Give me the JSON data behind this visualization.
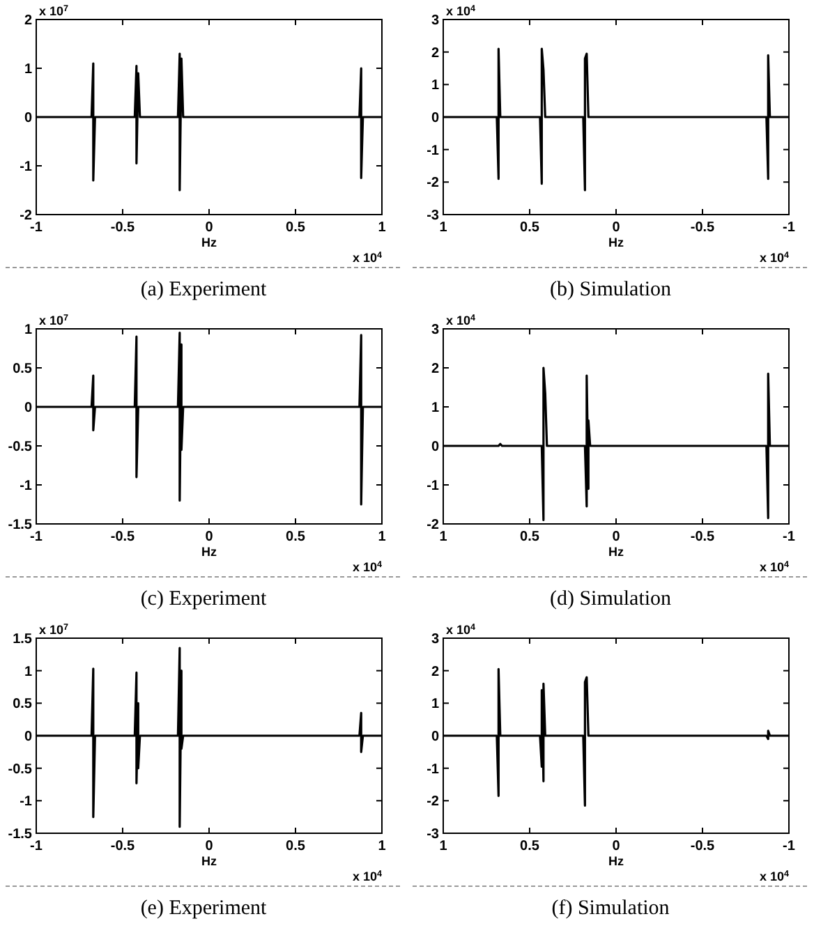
{
  "chart_data": [
    {
      "type": "line",
      "title": "(a) Experiment",
      "xlabel": "Hz",
      "annotations": [
        "x 10$^{7}$",
        "x 10$^{4}$"
      ],
      "xlim": [
        -1,
        1
      ],
      "xticks": [
        -1,
        -0.5,
        0,
        0.5,
        1
      ],
      "ylim": [
        -2,
        2
      ],
      "yticks": [
        -2,
        -1,
        0,
        1,
        2
      ],
      "x": [
        -1,
        -0.68,
        -0.67,
        -0.67,
        -0.66,
        -0.43,
        -0.42,
        -0.42,
        -0.41,
        -0.4,
        -0.18,
        -0.17,
        -0.17,
        -0.16,
        -0.15,
        0.87,
        0.88,
        0.88,
        0.89,
        1
      ],
      "series": [
        {
          "color": "#000000",
          "values": [
            0,
            0,
            1.1,
            -1.3,
            0,
            0,
            1.05,
            -0.95,
            0.9,
            0,
            0,
            1.3,
            -1.5,
            1.2,
            0,
            0,
            1.0,
            -1.25,
            0,
            0
          ]
        }
      ]
    },
    {
      "type": "line",
      "title": "(b) Simulation",
      "xlabel": "Hz",
      "annotations": [
        "x 10$^{4}$",
        "x 10$^{4}$"
      ],
      "xlim": [
        1,
        -1
      ],
      "xticks": [
        1,
        0.5,
        0,
        -0.5,
        -1
      ],
      "ylim": [
        -3,
        3
      ],
      "yticks": [
        -3,
        -2,
        -1,
        0,
        1,
        2,
        3
      ],
      "x": [
        -1,
        -0.89,
        -0.88,
        -0.88,
        -0.87,
        0.16,
        0.17,
        0.18,
        0.18,
        0.19,
        0.41,
        0.42,
        0.43,
        0.43,
        0.44,
        0.67,
        0.68,
        0.68,
        0.69,
        1
      ],
      "series": [
        {
          "color": "#000000",
          "values": [
            0,
            0,
            1.9,
            -1.9,
            0,
            0,
            1.95,
            1.8,
            -2.25,
            0,
            0,
            1.45,
            2.1,
            -2.05,
            0,
            0,
            2.1,
            -1.9,
            0,
            0
          ]
        }
      ]
    },
    {
      "type": "line",
      "title": "(c) Experiment",
      "xlabel": "Hz",
      "annotations": [
        "x 10$^{7}$",
        "x 10$^{4}$"
      ],
      "xlim": [
        -1,
        1
      ],
      "xticks": [
        -1,
        -0.5,
        0,
        0.5,
        1
      ],
      "ylim": [
        -1.5,
        1
      ],
      "yticks": [
        -1.5,
        -1,
        -0.5,
        0,
        0.5,
        1
      ],
      "x": [
        -1,
        -0.68,
        -0.67,
        -0.67,
        -0.66,
        -0.43,
        -0.42,
        -0.42,
        -0.41,
        -0.18,
        -0.17,
        -0.17,
        -0.16,
        -0.16,
        -0.15,
        0.87,
        0.88,
        0.88,
        0.89,
        1
      ],
      "series": [
        {
          "color": "#000000",
          "values": [
            0,
            0,
            0.4,
            -0.3,
            0,
            0,
            0.9,
            -0.9,
            0,
            0,
            0.95,
            -1.2,
            0.8,
            -0.55,
            0,
            0,
            0.92,
            -1.25,
            0,
            0
          ]
        }
      ]
    },
    {
      "type": "line",
      "title": "(d) Simulation",
      "xlabel": "Hz",
      "annotations": [
        "x 10$^{4}$",
        "x 10$^{4}$"
      ],
      "xlim": [
        1,
        -1
      ],
      "xticks": [
        1,
        0.5,
        0,
        -0.5,
        -1
      ],
      "ylim": [
        -2,
        3
      ],
      "yticks": [
        -2,
        -1,
        0,
        1,
        2,
        3
      ],
      "x": [
        -1,
        -0.89,
        -0.88,
        -0.88,
        -0.87,
        0.15,
        0.16,
        0.16,
        0.17,
        0.17,
        0.18,
        0.4,
        0.41,
        0.42,
        0.42,
        0.43,
        0.66,
        0.67,
        0.68,
        1
      ],
      "series": [
        {
          "color": "#000000",
          "values": [
            0,
            0,
            1.85,
            -1.85,
            0,
            0,
            0.65,
            -1.1,
            1.8,
            -1.55,
            0,
            0,
            1.35,
            2.0,
            -1.9,
            0,
            0,
            0.05,
            0,
            0
          ]
        }
      ]
    },
    {
      "type": "line",
      "title": "(e) Experiment",
      "xlabel": "Hz",
      "annotations": [
        "x 10$^{7}$",
        "x 10$^{4}$"
      ],
      "xlim": [
        -1,
        1
      ],
      "xticks": [
        -1,
        -0.5,
        0,
        0.5,
        1
      ],
      "ylim": [
        -1.5,
        1.5
      ],
      "yticks": [
        -1.5,
        -1,
        -0.5,
        0,
        0.5,
        1,
        1.5
      ],
      "x": [
        -1,
        -0.68,
        -0.67,
        -0.67,
        -0.66,
        -0.43,
        -0.42,
        -0.42,
        -0.41,
        -0.41,
        -0.4,
        -0.18,
        -0.17,
        -0.17,
        -0.16,
        -0.16,
        -0.15,
        0.87,
        0.88,
        0.88,
        0.89,
        1
      ],
      "series": [
        {
          "color": "#000000",
          "values": [
            0,
            0,
            1.03,
            -1.25,
            0,
            0,
            0.97,
            -0.73,
            0.5,
            -0.5,
            0,
            0,
            1.35,
            -1.4,
            1.0,
            -0.2,
            0,
            0,
            0.35,
            -0.25,
            0,
            0
          ]
        }
      ]
    },
    {
      "type": "line",
      "title": "(f) Simulation",
      "xlabel": "Hz",
      "annotations": [
        "x 10$^{4}$",
        "x 10$^{4}$"
      ],
      "xlim": [
        1,
        -1
      ],
      "xticks": [
        1,
        0.5,
        0,
        -0.5,
        -1
      ],
      "ylim": [
        -3,
        3
      ],
      "yticks": [
        -3,
        -2,
        -1,
        0,
        1,
        2,
        3
      ],
      "x": [
        -1,
        -0.89,
        -0.88,
        -0.88,
        -0.87,
        0.16,
        0.17,
        0.18,
        0.18,
        0.19,
        0.41,
        0.42,
        0.42,
        0.43,
        0.43,
        0.44,
        0.67,
        0.68,
        0.68,
        0.69,
        1
      ],
      "series": [
        {
          "color": "#000000",
          "values": [
            0,
            0,
            0.15,
            -0.1,
            0,
            0,
            1.8,
            1.65,
            -2.15,
            0,
            0,
            1.6,
            -1.4,
            1.4,
            -0.95,
            0,
            0,
            2.05,
            -1.85,
            0,
            0
          ]
        }
      ]
    }
  ]
}
